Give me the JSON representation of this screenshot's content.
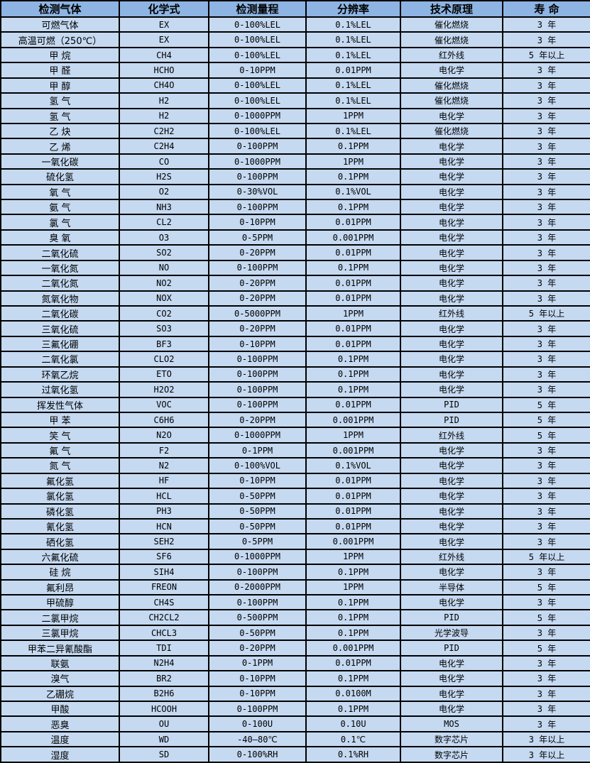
{
  "colors": {
    "header_bg": "#8db4e2",
    "row_bg": "#c5d9f1",
    "border": "#000000",
    "text": "#000000"
  },
  "chart_data": {
    "type": "table",
    "columns": [
      "检测气体",
      "化学式",
      "检测量程",
      "分辨率",
      "技术原理",
      "寿 命"
    ],
    "rows": [
      [
        "可燃气体",
        "EX",
        "0-100%LEL",
        "0.1%LEL",
        "催化燃烧",
        "3 年"
      ],
      [
        "高温可燃（250℃）",
        "EX",
        "0-100%LEL",
        "0.1%LEL",
        "催化燃烧",
        "3 年"
      ],
      [
        "甲 烷",
        "CH4",
        "0-100%LEL",
        "0.1%LEL",
        "红外线",
        "5 年以上"
      ],
      [
        "甲 醛",
        "HCHO",
        "0-10PPM",
        "0.01PPM",
        "电化学",
        "3 年"
      ],
      [
        "甲 醇",
        "CH4O",
        "0-100%LEL",
        "0.1%LEL",
        "催化燃烧",
        "3 年"
      ],
      [
        "氢 气",
        "H2",
        "0-100%LEL",
        "0.1%LEL",
        "催化燃烧",
        "3 年"
      ],
      [
        "氢 气",
        "H2",
        "0-1000PPM",
        "1PPM",
        "电化学",
        "3 年"
      ],
      [
        "乙 炔",
        "C2H2",
        "0-100%LEL",
        "0.1%LEL",
        "催化燃烧",
        "3 年"
      ],
      [
        "乙 烯",
        "C2H4",
        "0-100PPM",
        "0.1PPM",
        "电化学",
        "3 年"
      ],
      [
        "一氧化碳",
        "CO",
        "0-1000PPM",
        "1PPM",
        "电化学",
        "3 年"
      ],
      [
        "硫化氢",
        "H2S",
        "0-100PPM",
        "0.1PPM",
        "电化学",
        "3 年"
      ],
      [
        "氧 气",
        "O2",
        "0-30%VOL",
        "0.1%VOL",
        "电化学",
        "3 年"
      ],
      [
        "氨 气",
        "NH3",
        "0-100PPM",
        "0.1PPM",
        "电化学",
        "3 年"
      ],
      [
        "氯 气",
        "CL2",
        "0-10PPM",
        "0.01PPM",
        "电化学",
        "3 年"
      ],
      [
        "臭 氧",
        "O3",
        "0-5PPM",
        "0.001PPM",
        "电化学",
        "3 年"
      ],
      [
        "二氧化硫",
        "SO2",
        "0-20PPM",
        "0.01PPM",
        "电化学",
        "3 年"
      ],
      [
        "一氧化氮",
        "NO",
        "0-100PPM",
        "0.1PPM",
        "电化学",
        "3 年"
      ],
      [
        "二氧化氮",
        "NO2",
        "0-20PPM",
        "0.01PPM",
        "电化学",
        "3 年"
      ],
      [
        "氮氧化物",
        "NOX",
        "0-20PPM",
        "0.01PPM",
        "电化学",
        "3 年"
      ],
      [
        "二氧化碳",
        "CO2",
        "0-5000PPM",
        "1PPM",
        "红外线",
        "5 年以上"
      ],
      [
        "三氧化硫",
        "SO3",
        "0-20PPM",
        "0.01PPM",
        "电化学",
        "3 年"
      ],
      [
        "三氟化硼",
        "BF3",
        "0-10PPM",
        "0.01PPM",
        "电化学",
        "3 年"
      ],
      [
        "二氧化氯",
        "CLO2",
        "0-100PPM",
        "0.1PPM",
        "电化学",
        "3 年"
      ],
      [
        "环氧乙烷",
        "ETO",
        "0-100PPM",
        "0.1PPM",
        "电化学",
        "3 年"
      ],
      [
        "过氧化氢",
        "H2O2",
        "0-100PPM",
        "0.1PPM",
        "电化学",
        "3 年"
      ],
      [
        "挥发性气体",
        "VOC",
        "0-100PPM",
        "0.01PPM",
        "PID",
        "5 年"
      ],
      [
        "甲 苯",
        "C6H6",
        "0-20PPM",
        "0.001PPM",
        "PID",
        "5 年"
      ],
      [
        "笑 气",
        "N2O",
        "0-1000PPM",
        "1PPM",
        "红外线",
        "5 年"
      ],
      [
        "氟 气",
        "F2",
        "0-1PPM",
        "0.001PPM",
        "电化学",
        "3 年"
      ],
      [
        "氮 气",
        "N2",
        "0-100%VOL",
        "0.1%VOL",
        "电化学",
        "3 年"
      ],
      [
        "氟化氢",
        "HF",
        "0-10PPM",
        "0.01PPM",
        "电化学",
        "3 年"
      ],
      [
        "氯化氢",
        "HCL",
        "0-50PPM",
        "0.01PPM",
        "电化学",
        "3 年"
      ],
      [
        "磷化氢",
        "PH3",
        "0-50PPM",
        "0.01PPM",
        "电化学",
        "3 年"
      ],
      [
        "氰化氢",
        "HCN",
        "0-50PPM",
        "0.01PPM",
        "电化学",
        "3 年"
      ],
      [
        "硒化氢",
        "SEH2",
        "0-5PPM",
        "0.001PPM",
        "电化学",
        "3 年"
      ],
      [
        "六氟化硫",
        "SF6",
        "0-1000PPM",
        "1PPM",
        "红外线",
        "5 年以上"
      ],
      [
        "硅 烷",
        "SIH4",
        "0-100PPM",
        "0.1PPM",
        "电化学",
        "3 年"
      ],
      [
        "氟利昂",
        "FREON",
        "0-2000PPM",
        "1PPM",
        "半导体",
        "5 年"
      ],
      [
        "甲硫醇",
        "CH4S",
        "0-100PPM",
        "0.1PPM",
        "电化学",
        "3 年"
      ],
      [
        "二氯甲烷",
        "CH2CL2",
        "0-500PPM",
        "0.1PPM",
        "PID",
        "5 年"
      ],
      [
        "三氯甲烷",
        "CHCL3",
        "0-50PPM",
        "0.1PPM",
        "光学波导",
        "3 年"
      ],
      [
        "甲苯二异氰酸酯",
        "TDI",
        "0-20PPM",
        "0.001PPM",
        "PID",
        "5 年"
      ],
      [
        "联氨",
        "N2H4",
        "0-1PPM",
        "0.01PPM",
        "电化学",
        "3 年"
      ],
      [
        "溴气",
        "BR2",
        "0-10PPM",
        "0.1PPM",
        "电化学",
        "3 年"
      ],
      [
        "乙硼烷",
        "B2H6",
        "0-10PPM",
        "0.0100M",
        "电化学",
        "3 年"
      ],
      [
        "甲酸",
        "HCOOH",
        "0-100PPM",
        "0.1PPM",
        "电化学",
        "3 年"
      ],
      [
        "恶臭",
        "OU",
        "0-100U",
        "0.10U",
        "MOS",
        "3 年"
      ],
      [
        "温度",
        "WD",
        "-40—80℃",
        "0.1℃",
        "数字芯片",
        "3 年以上"
      ],
      [
        "湿度",
        "SD",
        "0-100%RH",
        "0.1%RH",
        "数字芯片",
        "3 年以上"
      ]
    ]
  }
}
